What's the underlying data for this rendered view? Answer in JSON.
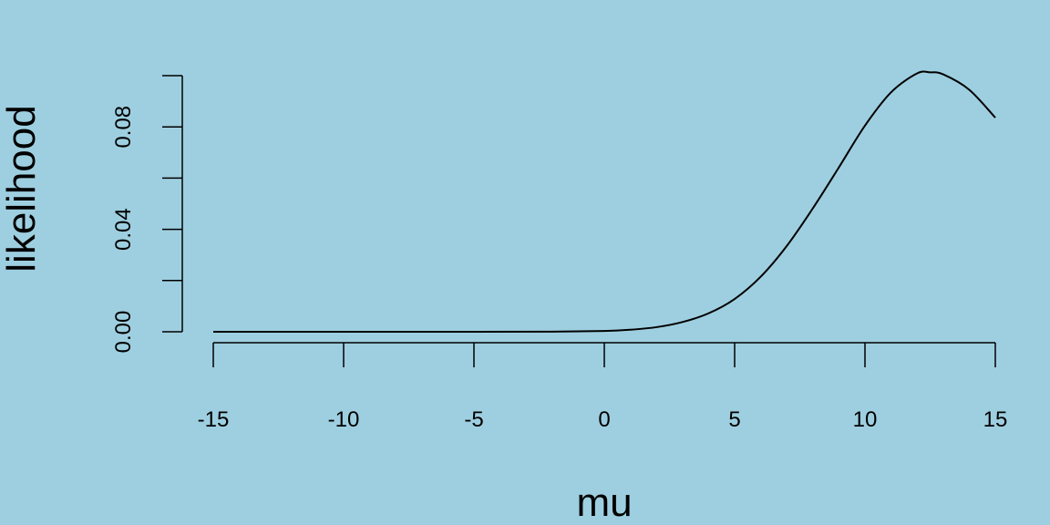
{
  "chart_data": {
    "type": "line",
    "title": "",
    "xlabel": "mu",
    "ylabel": "likelihood",
    "x_ticks": [
      "-15",
      "-10",
      "-5",
      "0",
      "5",
      "10",
      "15"
    ],
    "y_ticks": [
      "0.00",
      "0.04",
      "0.08"
    ],
    "xlim": [
      -15,
      15
    ],
    "ylim": [
      0,
      0.1
    ],
    "grid": false,
    "background_color": "#9ecfe0",
    "line_color": "#000000",
    "series": [
      {
        "x": [
          -15,
          -10,
          -5,
          -2,
          0,
          1,
          2,
          3,
          4,
          5,
          6,
          7,
          8,
          9,
          10,
          11,
          12,
          12.5,
          13,
          14,
          15
        ],
        "y": [
          0.0,
          0.0,
          0.0,
          5e-05,
          0.0003,
          0.0008,
          0.0018,
          0.0038,
          0.0072,
          0.0128,
          0.0215,
          0.0335,
          0.0482,
          0.0642,
          0.0805,
          0.0935,
          0.1009,
          0.1013,
          0.1005,
          0.0945,
          0.0836
        ]
      }
    ]
  }
}
